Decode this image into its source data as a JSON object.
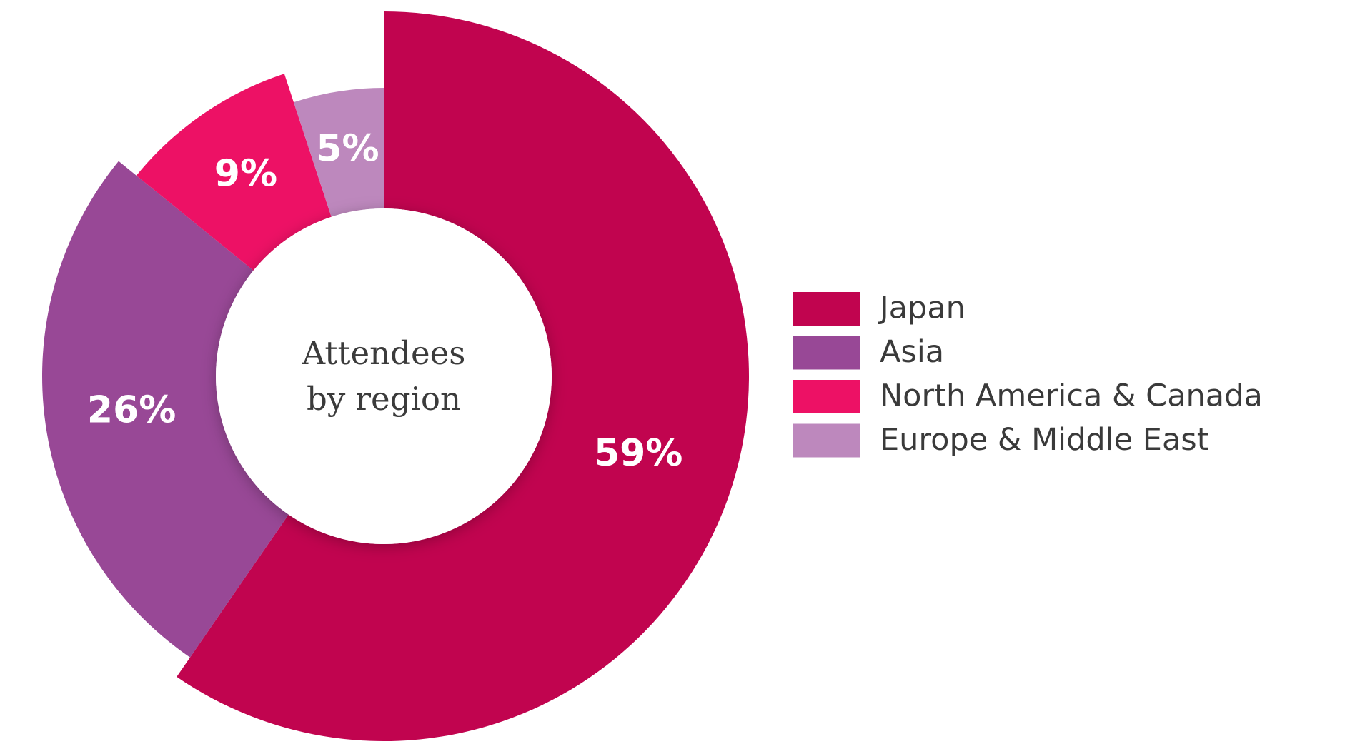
{
  "chart_data": {
    "type": "pie",
    "donut": true,
    "center_label": "Attendees by region",
    "categories": [
      "Japan",
      "Asia",
      "North America & Canada",
      "Europe & Middle East"
    ],
    "values": [
      59,
      26,
      9,
      5
    ],
    "value_labels": [
      "59%",
      "26%",
      "9%",
      "5%"
    ],
    "colors": [
      "#c1044f",
      "#984896",
      "#ed1165",
      "#bd88bd"
    ]
  }
}
